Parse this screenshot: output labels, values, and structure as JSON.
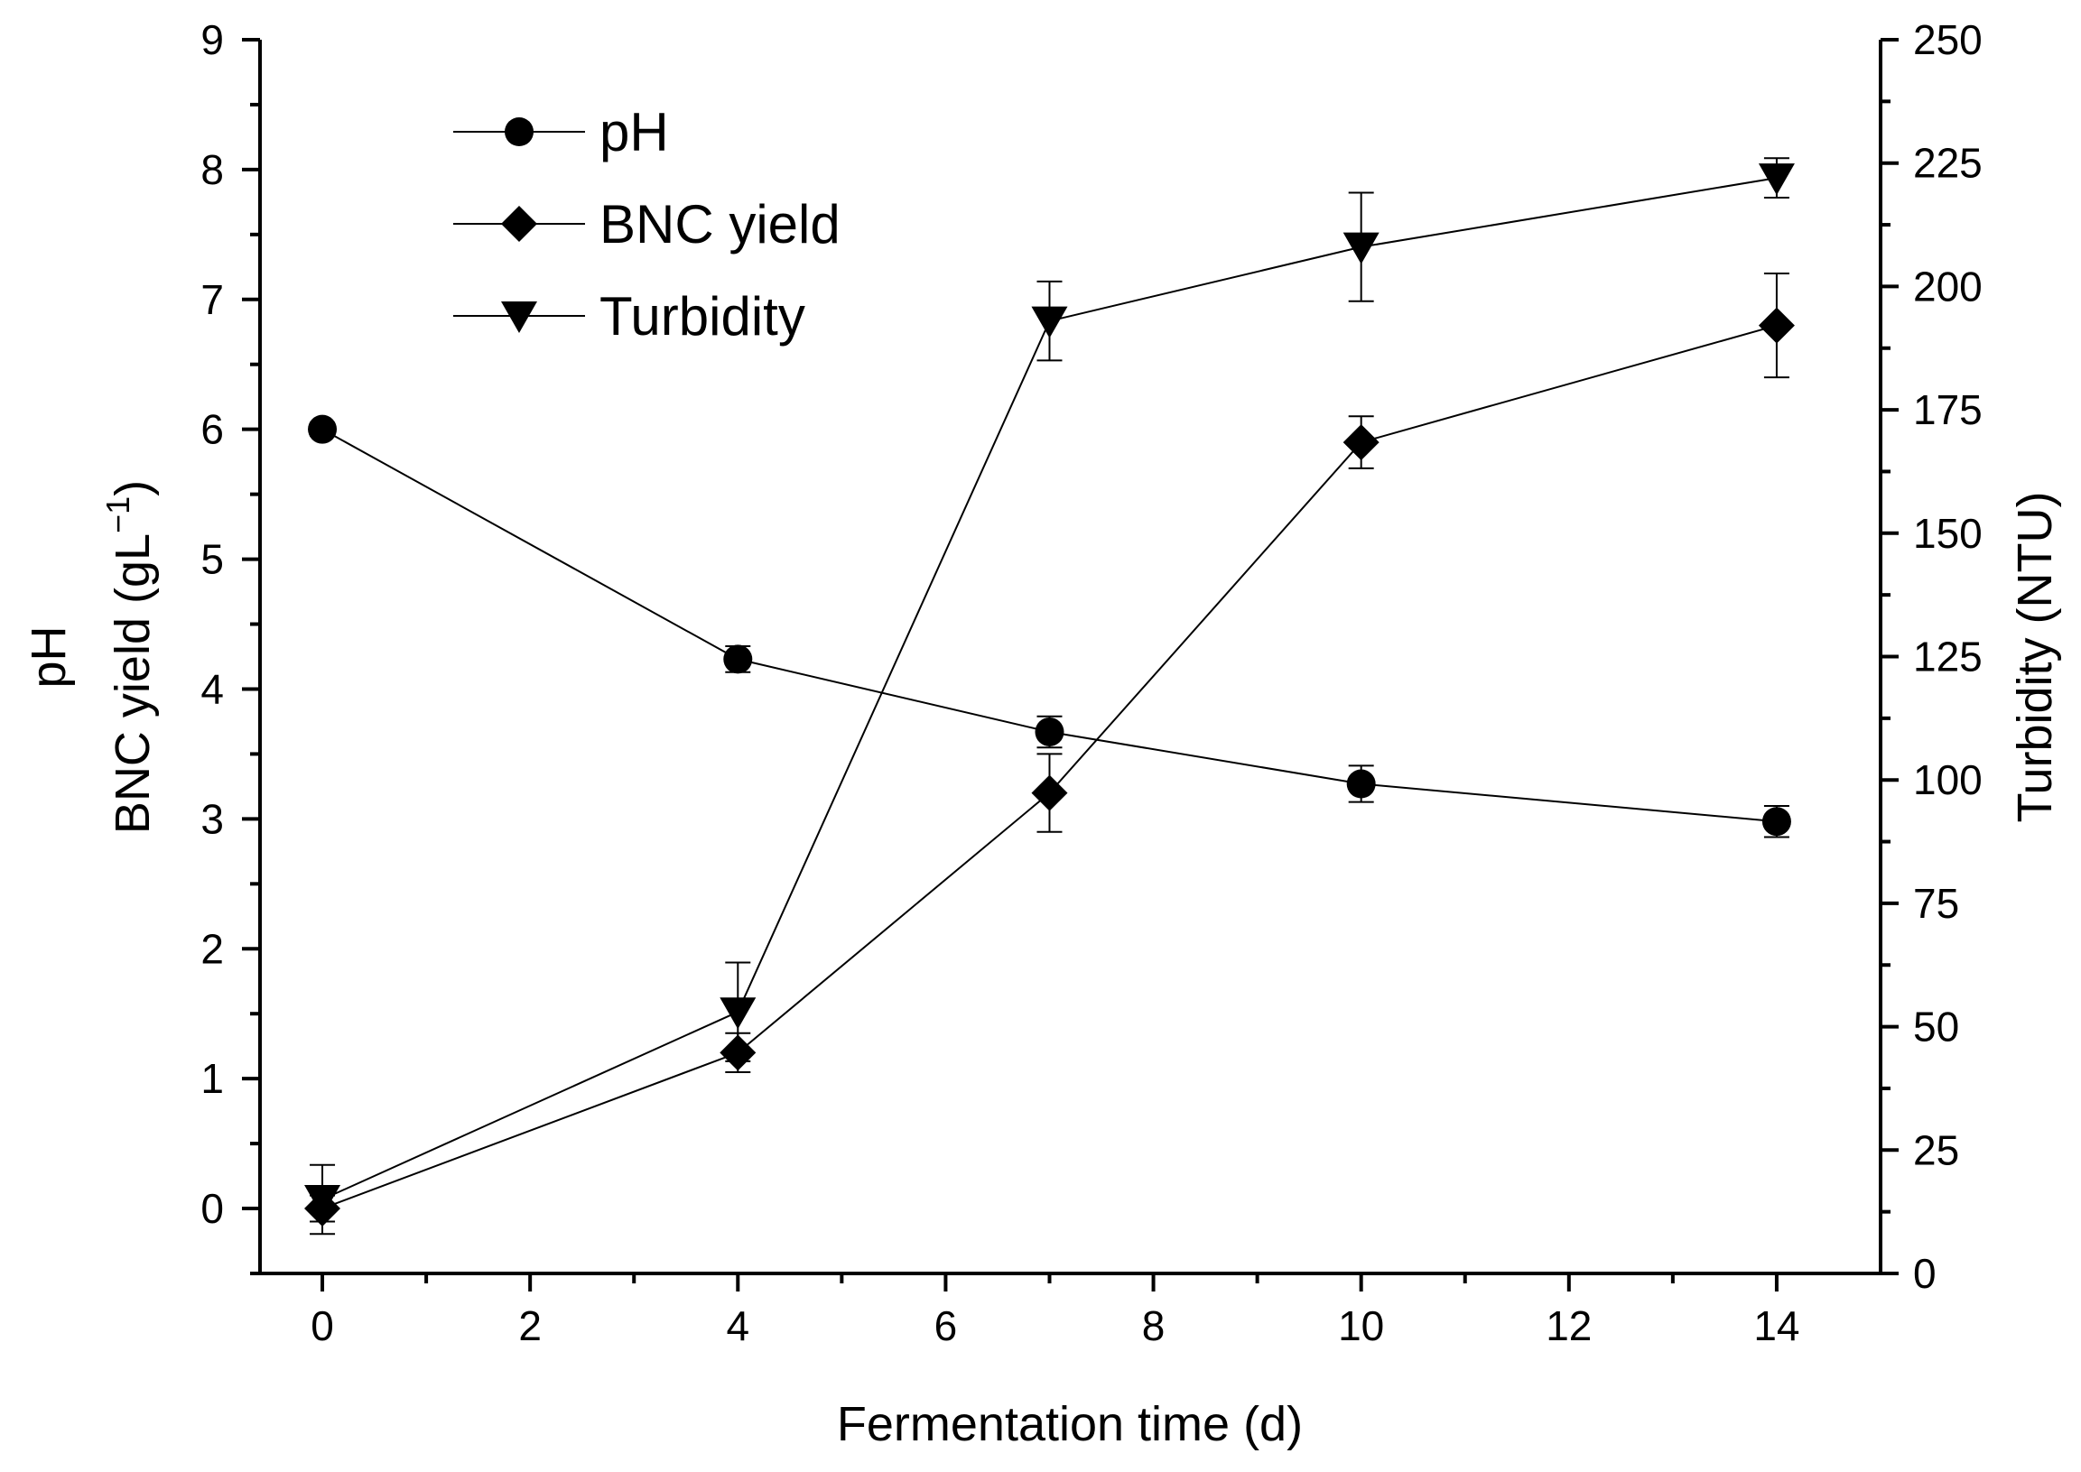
{
  "chart_data": {
    "type": "line",
    "title": "",
    "xlabel": "Fermentation time (d)",
    "ylabel_left_lines": [
      "pH",
      "BNC yield (gL⁻¹)"
    ],
    "ylabel_left_main": "BNC yield (gL",
    "ylabel_left_sup": "−1",
    "ylabel_left_close": ")",
    "ylabel_right": "Turbidity (NTU)",
    "xlim": [
      -0.6,
      15
    ],
    "ylim_left": [
      -0.5,
      9
    ],
    "ylim_right": [
      0,
      250
    ],
    "x_ticks": [
      0,
      2,
      4,
      6,
      8,
      10,
      12,
      14
    ],
    "x_minor_ticks": [
      1,
      3,
      5,
      7,
      9,
      11,
      13
    ],
    "y_left_ticks": [
      0,
      1,
      2,
      3,
      4,
      5,
      6,
      7,
      8,
      9
    ],
    "y_left_minor_ticks": [
      -0.5,
      0.5,
      1.5,
      2.5,
      3.5,
      4.5,
      5.5,
      6.5,
      7.5,
      8.5
    ],
    "y_right_ticks": [
      0,
      25,
      50,
      75,
      100,
      125,
      150,
      175,
      200,
      225,
      250
    ],
    "y_right_minor_ticks": [
      12.5,
      37.5,
      62.5,
      87.5,
      112.5,
      137.5,
      162.5,
      187.5,
      212.5,
      237.5
    ],
    "x": [
      0,
      4,
      7,
      10,
      14
    ],
    "series": [
      {
        "name": "pH",
        "marker": "circle",
        "axis": "left",
        "values": [
          6.0,
          4.23,
          3.67,
          3.27,
          2.98
        ],
        "errors": [
          0.05,
          0.1,
          0.12,
          0.14,
          0.12
        ]
      },
      {
        "name": "BNC yield",
        "marker": "diamond",
        "axis": "left",
        "values": [
          0.0,
          1.2,
          3.2,
          5.9,
          6.8
        ],
        "errors": [
          0.1,
          0.15,
          0.3,
          0.2,
          0.4
        ]
      },
      {
        "name": "Turbidity",
        "marker": "triangle-down",
        "axis": "right",
        "values": [
          15,
          53,
          193,
          208,
          222
        ],
        "errors": [
          7,
          10,
          8,
          11,
          4
        ]
      }
    ],
    "legend_position": "top-left"
  }
}
